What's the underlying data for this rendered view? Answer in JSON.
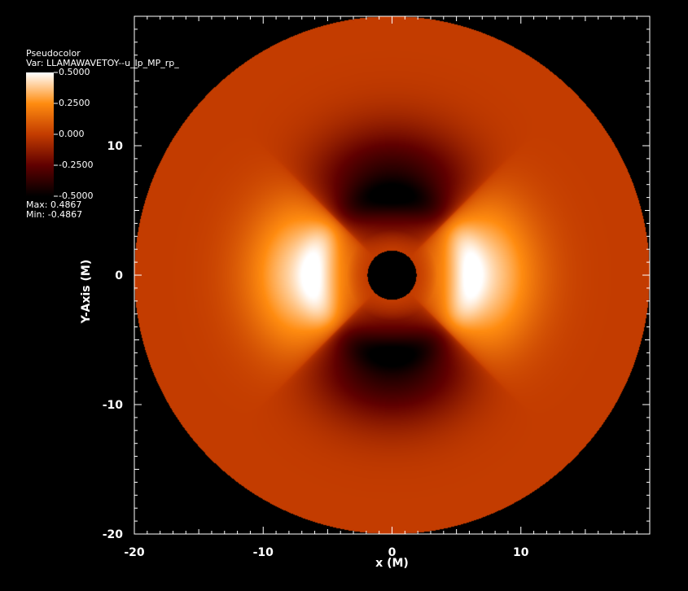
{
  "chart_data": {
    "type": "heatmap",
    "plot_type": "Pseudocolor",
    "var_label": "Var: LLAMAWAVETOY--u_lp_MP_rp_",
    "xlabel": "x (M)",
    "ylabel": "Y-Axis (M)",
    "xlim": [
      -20,
      20
    ],
    "ylim": [
      -20,
      20
    ],
    "x_ticks": [
      -20,
      -10,
      0,
      10
    ],
    "x_tick_labels": [
      "-20",
      "-10",
      "0",
      "10"
    ],
    "y_ticks": [
      -20,
      -10,
      0,
      10
    ],
    "y_tick_labels": [
      "-20",
      "-10",
      "0",
      "10"
    ],
    "colorbar": {
      "min": -0.5,
      "max": 0.5,
      "ticks": [
        0.5,
        0.25,
        0.0,
        -0.25,
        -0.5
      ],
      "tick_labels": [
        "0.5000",
        "0.2500",
        "0.000",
        "-0.2500",
        "-0.5000"
      ],
      "colors": [
        "#ffffff",
        "#ff8c10",
        "#c33c00",
        "#600000",
        "#000000"
      ]
    },
    "data_max_label": "Max: 0.4867",
    "data_min_label": "Min: -0.4867",
    "data_max": 0.4867,
    "data_min": -0.4867,
    "domain": {
      "shape": "annulus",
      "inner_radius": 1.9,
      "outer_radius": 20.0,
      "background_value": 0.0
    },
    "field_features": [
      {
        "type": "positive_lobe",
        "center_x": 6.0,
        "center_y": 0,
        "peak_value": 0.4867
      },
      {
        "type": "positive_lobe",
        "center_x": -6.0,
        "center_y": 0,
        "peak_value": 0.4867
      },
      {
        "type": "negative_lobe",
        "center_x": 0,
        "center_y": 6.0,
        "peak_value": -0.4867
      },
      {
        "type": "negative_lobe",
        "center_x": 0,
        "center_y": -6.0,
        "peak_value": -0.4867
      }
    ]
  }
}
